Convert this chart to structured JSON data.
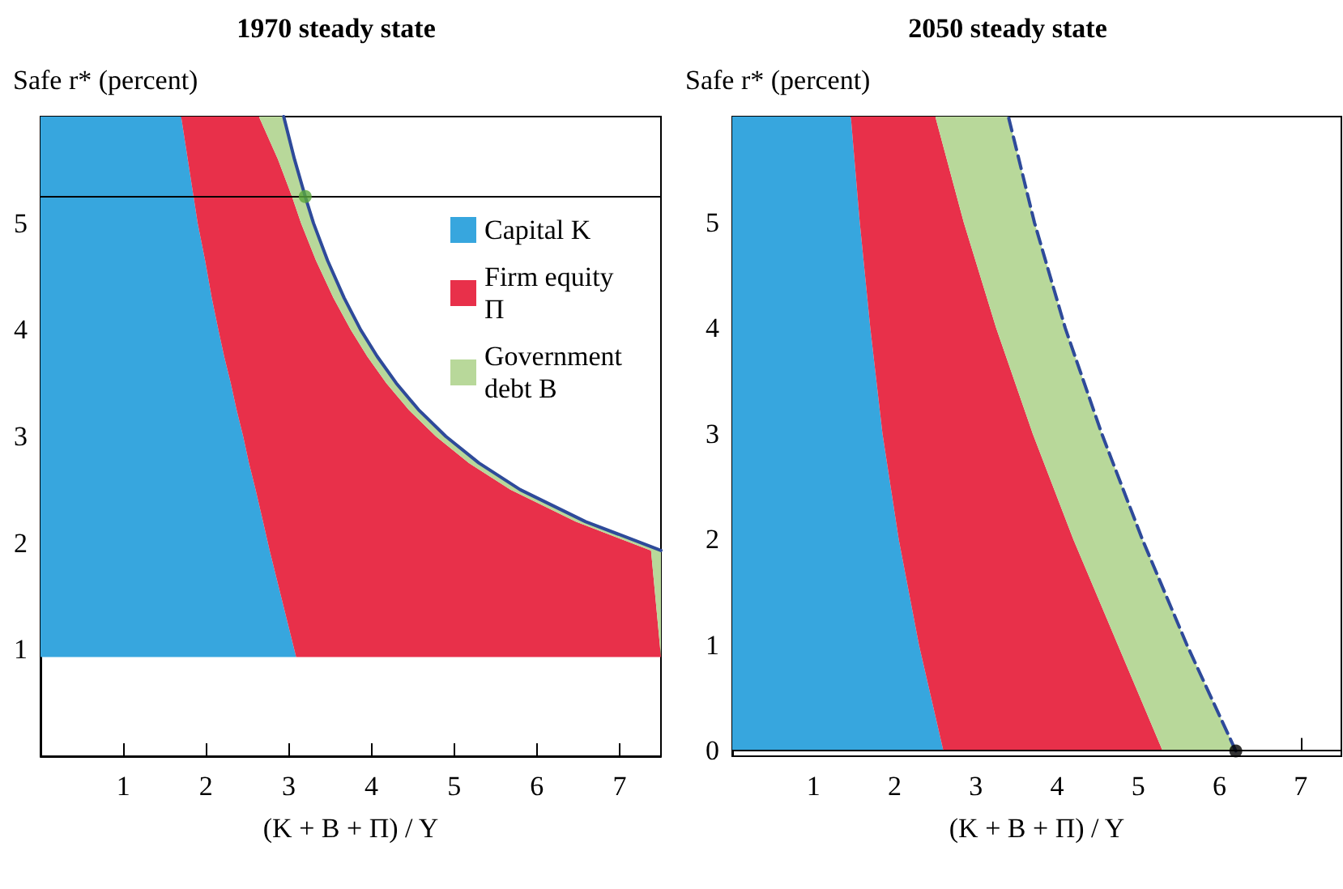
{
  "chart_data": [
    {
      "type": "area",
      "title": "1970 steady state",
      "ylabel": "Safe r* (percent)",
      "xlabel": "(K + B + Π) / Y",
      "orientation": "horizontal",
      "stacked": true,
      "legend": "top right",
      "x": [
        0.93,
        1.93,
        2.2,
        2.5,
        2.75,
        3,
        3.25,
        3.5,
        3.75,
        4,
        4.3,
        4.65,
        5,
        5.25,
        5.6,
        6
      ],
      "xlim": [
        0,
        7.5
      ],
      "xticks": [
        1,
        2,
        3,
        4,
        5,
        6,
        7
      ],
      "ylim": [
        0,
        6
      ],
      "yticks": [
        1,
        2,
        3,
        4,
        5
      ],
      "series": [
        {
          "name": "Capital K",
          "color": "#37a6de",
          "values": [
            3.09,
            2.77,
            2.69,
            2.6,
            2.52,
            2.45,
            2.37,
            2.3,
            2.22,
            2.15,
            2.07,
            1.99,
            1.9,
            1.85,
            1.78,
            1.7
          ]
        },
        {
          "name": "Firm equity Π",
          "color": "#e8304a",
          "values": [
            4.41,
            4.61,
            3.78,
            3.08,
            2.66,
            2.33,
            2.08,
            1.88,
            1.73,
            1.6,
            1.47,
            1.34,
            1.25,
            1.19,
            1.09,
            0.94
          ]
        },
        {
          "name": "Government debt B",
          "color": "#b8d89a",
          "values": [
            0,
            0.12,
            0.12,
            0.12,
            0.12,
            0.12,
            0.12,
            0.12,
            0.12,
            0.12,
            0.13,
            0.14,
            0.15,
            0.16,
            0.2,
            0.3
          ]
        },
        {
          "type": "line",
          "color": "#2e4a9a",
          "line_style": "solid",
          "x": [
            1.93,
            2.2,
            2.5,
            2.75,
            3,
            3.25,
            3.5,
            3.75,
            4,
            4.3,
            4.65,
            5,
            5.25,
            5.6,
            6
          ],
          "values": [
            7.5,
            6.59,
            5.8,
            5.3,
            4.9,
            4.57,
            4.3,
            4.07,
            3.87,
            3.67,
            3.47,
            3.3,
            3.2,
            3.07,
            2.94
          ]
        },
        {
          "type": "scatter",
          "color": "#5aa83c",
          "marker": "circle",
          "x": [
            5.25
          ],
          "values": [
            3.2
          ]
        }
      ],
      "ref_lines": [
        {
          "axis": "y",
          "value": 5.25,
          "color": "#000000"
        }
      ]
    },
    {
      "type": "area",
      "title": "2050 steady state",
      "ylabel": "Safe r* (percent)",
      "xlabel": "(K + B + Π) / Y",
      "orientation": "horizontal",
      "stacked": true,
      "x": [
        0,
        1,
        2,
        3,
        4,
        5,
        6
      ],
      "xlim": [
        0,
        7.5
      ],
      "xticks": [
        1,
        2,
        3,
        4,
        5,
        6,
        7
      ],
      "ylim": [
        -0.05,
        6
      ],
      "yticks": [
        0,
        1,
        2,
        3,
        4,
        5
      ],
      "series": [
        {
          "color": "#37a6de",
          "values": [
            2.6,
            2.3,
            2.05,
            1.85,
            1.7,
            1.57,
            1.46
          ]
        },
        {
          "color": "#e8304a",
          "values": [
            2.7,
            2.45,
            2.15,
            1.85,
            1.55,
            1.28,
            1.04
          ]
        },
        {
          "color": "#b8d89a",
          "values": [
            0.9,
            0.85,
            0.85,
            0.85,
            0.85,
            0.87,
            0.9
          ]
        },
        {
          "type": "line",
          "color": "#2e4a9a",
          "line_style": "dashed",
          "x": [
            0,
            1,
            2,
            3,
            4,
            5,
            6
          ],
          "values": [
            6.2,
            5.6,
            5.05,
            4.55,
            4.1,
            3.72,
            3.4
          ]
        },
        {
          "type": "scatter",
          "color": "#000000",
          "marker": "circle",
          "x": [
            0
          ],
          "values": [
            6.2
          ]
        }
      ],
      "ref_lines": [
        {
          "axis": "y",
          "value": 0,
          "color": "#000000"
        }
      ]
    }
  ]
}
